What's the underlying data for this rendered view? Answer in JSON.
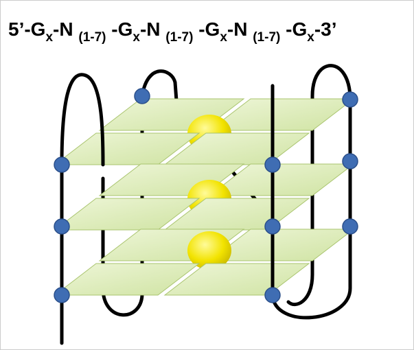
{
  "title": {
    "parts": [
      {
        "text": "5’-G",
        "subscript": false
      },
      {
        "text": "x",
        "subscript": true
      },
      {
        "text": "-N ",
        "subscript": false
      },
      {
        "text": "(1-7)",
        "subscript": true
      },
      {
        "text": " -G",
        "subscript": false
      },
      {
        "text": "x",
        "subscript": true
      },
      {
        "text": "-N ",
        "subscript": false
      },
      {
        "text": "(1-7)",
        "subscript": true
      },
      {
        "text": " -G",
        "subscript": false
      },
      {
        "text": "x",
        "subscript": true
      },
      {
        "text": "-N ",
        "subscript": false
      },
      {
        "text": "(1-7)",
        "subscript": true
      },
      {
        "text": " -G",
        "subscript": false
      },
      {
        "text": "x",
        "subscript": true
      },
      {
        "text": "-3’",
        "subscript": false
      }
    ]
  }
}
